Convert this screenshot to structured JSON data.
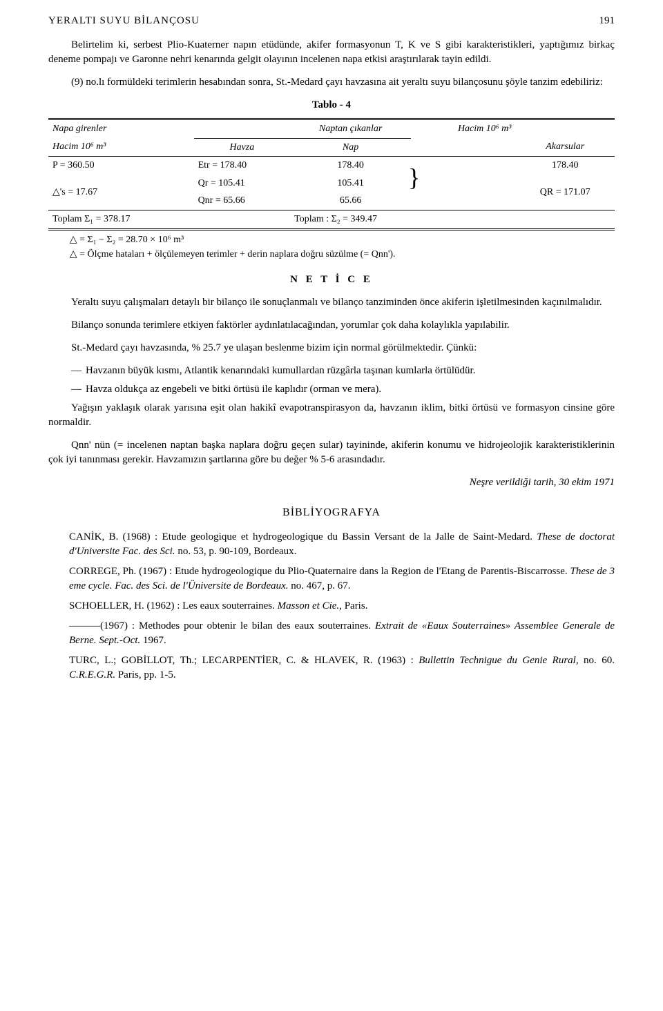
{
  "header": {
    "running_head": "YERALTI SUYU BİLANÇOSU",
    "page_no": "191"
  },
  "intro": {
    "p1": "Belirtelim ki, serbest Plio-Kuaterner napın etüdünde, akifer formasyonun T, K ve S gibi karakteristikleri, yaptığımız birkaç deneme pompajı ve Garonne nehri kenarında gelgit olayının incelenen napa etkisi araştırılarak tayin edildi.",
    "p2": "(9) no.lı formüldeki terimlerin hesabından sonra, St.-Medard çayı havzasına ait yeraltı suyu bilançosunu şöyle tanzim edebiliriz:"
  },
  "table": {
    "caption": "Tablo - 4",
    "left_header": "Napa girenler",
    "right_header": "Naptan çıkanlar",
    "right_unit": "Hacim 10⁶ m³",
    "left_subhead": "Hacim 10⁶ m³",
    "col_havza": "Havza",
    "col_nap": "Nap",
    "col_akarsular": "Akarsular",
    "rows_left": [
      "P = 360.50",
      "△'s = 17.67"
    ],
    "rows_mid": [
      "Etr = 178.40",
      "Qr = 105.41",
      "Qnr = 65.66"
    ],
    "rows_nap": [
      "178.40",
      "105.41",
      "65.66"
    ],
    "rows_akar": [
      "178.40",
      "QR = 171.07"
    ],
    "sum_left": "Toplam Σ₁ = 378.17",
    "sum_right": "Toplam : Σ₂ = 349.47",
    "delta1": "△ = Σ₁ − Σ₂ = 28.70 × 10⁶ m³",
    "delta2": "△ = Ölçme hataları + ölçülemeyen terimler + derin naplara doğru süzülme (= Qnn')."
  },
  "netice": {
    "title": "N E T İ C E",
    "p1": "Yeraltı suyu çalışmaları detaylı bir bilanço ile sonuçlanmalı ve bilanço tanziminden önce akiferin işletilmesinden kaçınılmalıdır.",
    "p2": "Bilanço sonunda terimlere etkiyen faktörler aydınlatılacağından, yorumlar çok daha kolaylıkla yapılabilir.",
    "p3": "St.-Medard çayı havzasında, % 25.7 ye ulaşan beslenme bizim için normal görülmektedir. Çünkü:",
    "li1": "Havzanın büyük kısmı, Atlantik kenarındaki kumullardan rüzgârla taşınan kumlarla örtülüdür.",
    "li2": "Havza oldukça az engebeli ve bitki örtüsü ile kaplıdır (orman ve mera).",
    "p4": "Yağışın yaklaşık olarak yarısına eşit olan hakikî evapotranspirasyon da, havzanın iklim, bitki örtüsü ve formasyon cinsine göre normaldir.",
    "p5": "Qnn' nün (= incelenen naptan başka naplara doğru geçen sular) tayininde, akiferin konumu ve hidrojeolojik karakteristiklerinin çok iyi tanınması gerekir. Havzamızın şartlarına göre bu değer % 5-6 arasındadır.",
    "pub_date": "Neşre verildiği tarih, 30 ekim 1971"
  },
  "biblio": {
    "title": "BİBLİYOGRAFYA",
    "r1a": "CANİK, B. (1968) : Etude geologique et hydrogeologique du Bassin Versant de la Jalle de Saint-Medard. ",
    "r1b": "These de doctorat d'Universite Fac. des Sci.",
    "r1c": " no. 53, p. 90-109, Bordeaux.",
    "r2a": "CORREGE, Ph. (1967) : Etude hydrogeologique du Plio-Quaternaire dans la Region de l'Etang de Parentis-Biscarrosse. ",
    "r2b": "These de 3 eme cycle. Fac. des Sci. de l'Üniversite de Bordeaux.",
    "r2c": " no. 467, p. 67.",
    "r3a": "SCHOELLER, H. (1962) : Les eaux souterraines. ",
    "r3b": "Masson et Cie.,",
    "r3c": " Paris.",
    "r4a": "———(1967) : Methodes pour obtenir le bilan des eaux souterraines. ",
    "r4b": "Extrait de «Eaux Souterraines» Assemblee Generale de Berne. Sept.-Oct.",
    "r4c": " 1967.",
    "r5a": "TURC, L.; GOBİLLOT, Th.; LECARPENTİER, C. & HLAVEK, R. (1963) : ",
    "r5b": "Bullettin Technigue du Genie Rural,",
    "r5c": " no. 60. ",
    "r5d": "C.R.E.G.R.",
    "r5e": " Paris, pp. 1-5."
  }
}
